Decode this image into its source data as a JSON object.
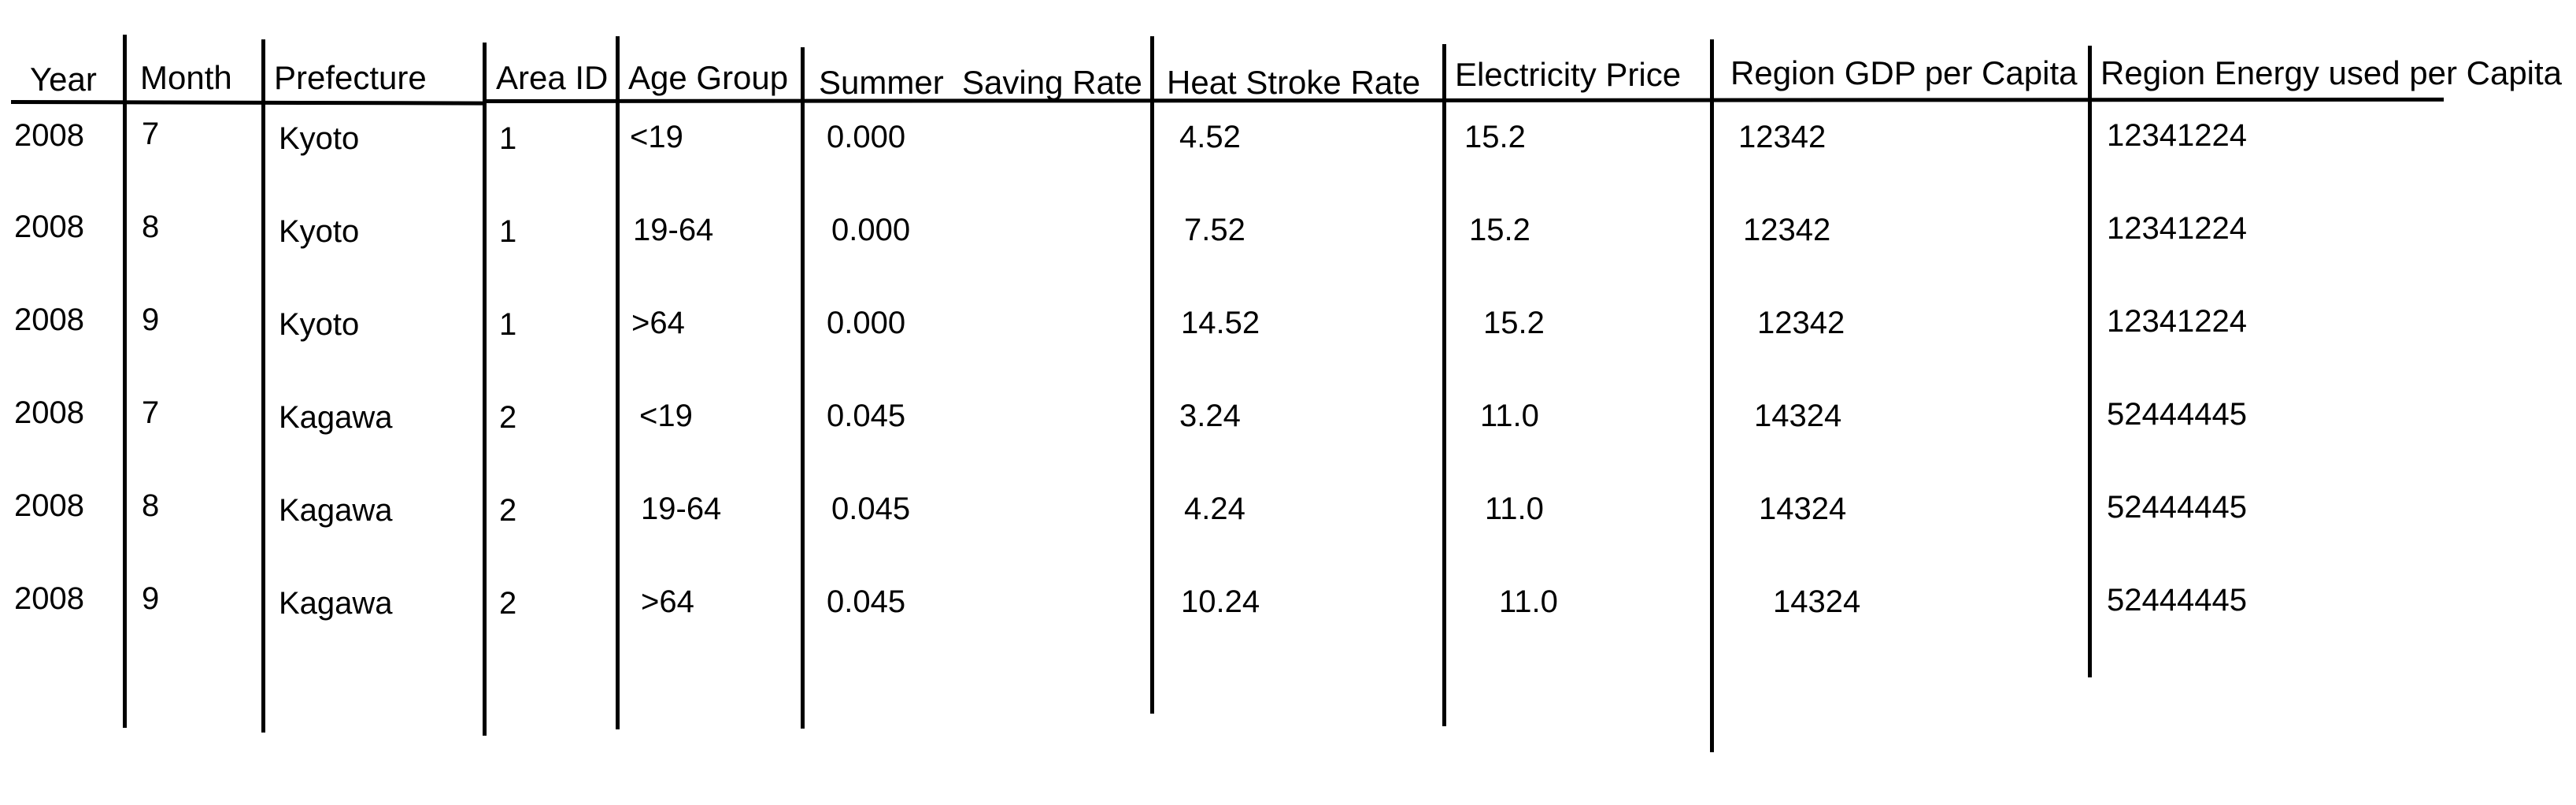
{
  "headers": {
    "year": "Year",
    "month": "Month",
    "prefecture": "Prefecture",
    "area_id": "Area ID",
    "age_group": "Age Group",
    "summer_saving_rate": "Summer  Saving Rate",
    "heat_stroke_rate": "Heat Stroke Rate",
    "electricity_price": "Electricity Price",
    "region_gdp": "Region GDP per Capita",
    "region_energy": "Region Energy used per Capita"
  },
  "rows": [
    {
      "year": "2008",
      "month": "7",
      "prefecture": "Kyoto",
      "area_id": "1",
      "age_group": "<19",
      "summer_saving_rate": "0.000",
      "heat_stroke_rate": "4.52",
      "electricity_price": "15.2",
      "region_gdp": "12342",
      "region_energy": "12341224"
    },
    {
      "year": "2008",
      "month": "8",
      "prefecture": "Kyoto",
      "area_id": "1",
      "age_group": "19-64",
      "summer_saving_rate": "0.000",
      "heat_stroke_rate": "7.52",
      "electricity_price": "15.2",
      "region_gdp": "12342",
      "region_energy": "12341224"
    },
    {
      "year": "2008",
      "month": "9",
      "prefecture": "Kyoto",
      "area_id": "1",
      "age_group": ">64",
      "summer_saving_rate": "0.000",
      "heat_stroke_rate": "14.52",
      "electricity_price": "15.2",
      "region_gdp": "12342",
      "region_energy": "12341224"
    },
    {
      "year": "2008",
      "month": "7",
      "prefecture": "Kagawa",
      "area_id": "2",
      "age_group": "<19",
      "summer_saving_rate": "0.045",
      "heat_stroke_rate": "3.24",
      "electricity_price": "11.0",
      "region_gdp": "14324",
      "region_energy": "52444445"
    },
    {
      "year": "2008",
      "month": "8",
      "prefecture": "Kagawa",
      "area_id": "2",
      "age_group": "19-64",
      "summer_saving_rate": "0.045",
      "heat_stroke_rate": "4.24",
      "electricity_price": "11.0",
      "region_gdp": "14324",
      "region_energy": "52444445"
    },
    {
      "year": "2008",
      "month": "9",
      "prefecture": "Kagawa",
      "area_id": "2",
      "age_group": ">64",
      "summer_saving_rate": "0.045",
      "heat_stroke_rate": "10.24",
      "electricity_price": "11.0",
      "region_gdp": "14324",
      "region_energy": "52444445"
    }
  ]
}
